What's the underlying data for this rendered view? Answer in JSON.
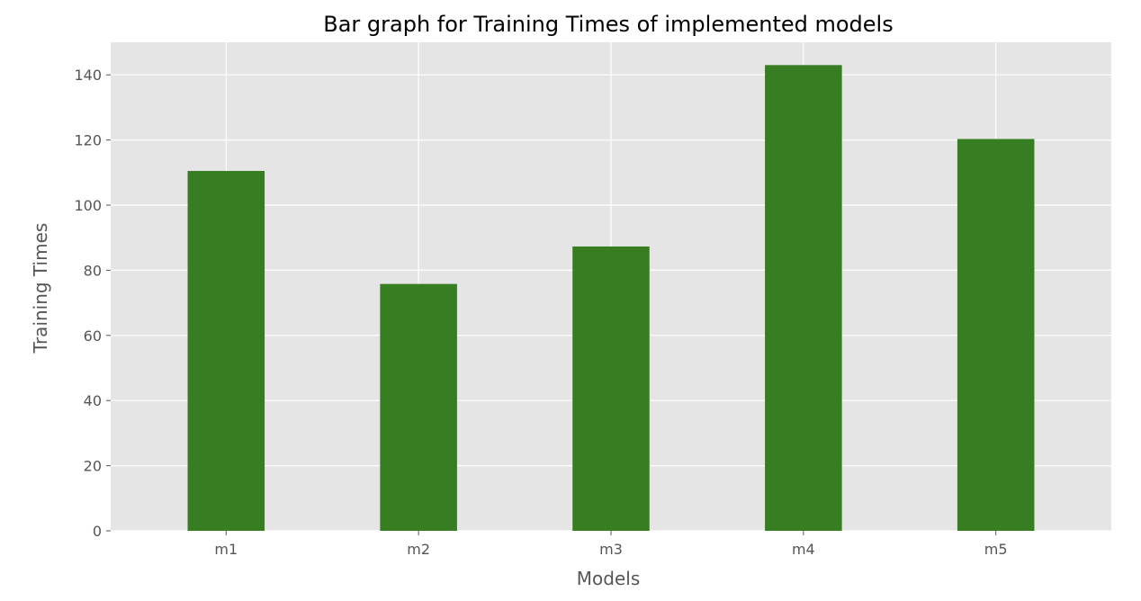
{
  "chart_data": {
    "type": "bar",
    "title": "Bar graph for Training Times of implemented models",
    "xlabel": "Models",
    "ylabel": "Training Times",
    "categories": [
      "m1",
      "m2",
      "m3",
      "m4",
      "m5"
    ],
    "values": [
      110.5,
      75.8,
      87.3,
      143.0,
      120.3
    ],
    "ylim": [
      0,
      150
    ],
    "yticks": [
      0,
      20,
      40,
      60,
      80,
      100,
      120,
      140
    ],
    "grid": true,
    "colors": {
      "bar": "#377e22",
      "plot_background": "#e5e5e5",
      "grid": "#ffffff",
      "tick_text": "#555555",
      "title_text": "#000000"
    }
  }
}
